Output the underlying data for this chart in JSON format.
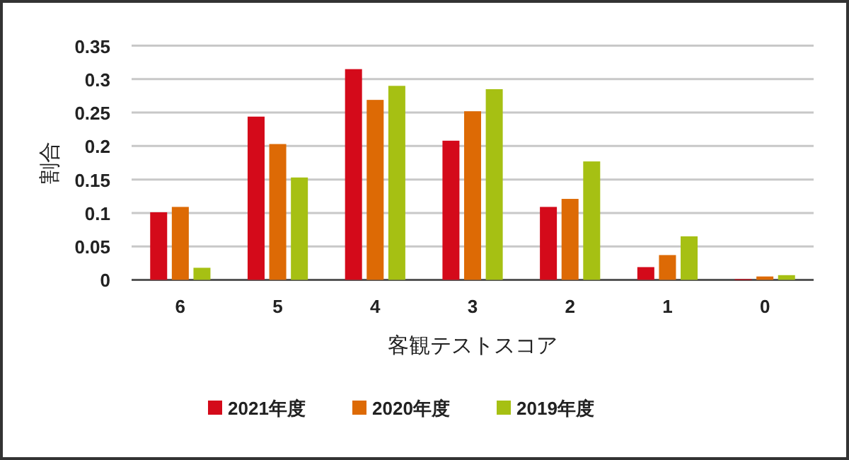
{
  "chart_data": {
    "type": "bar",
    "xlabel": "客観テストスコア",
    "ylabel": "割合",
    "categories": [
      "6",
      "5",
      "4",
      "3",
      "2",
      "1",
      "0"
    ],
    "series": [
      {
        "name": "2021年度",
        "color": "#d40a1a",
        "values": [
          0.101,
          0.244,
          0.315,
          0.208,
          0.109,
          0.019,
          0.001
        ]
      },
      {
        "name": "2020年度",
        "color": "#dd6a05",
        "values": [
          0.109,
          0.203,
          0.269,
          0.252,
          0.121,
          0.037,
          0.005
        ]
      },
      {
        "name": "2019年度",
        "color": "#a6c013",
        "values": [
          0.018,
          0.153,
          0.29,
          0.285,
          0.177,
          0.065,
          0.007
        ]
      }
    ],
    "ylim": [
      0,
      0.35
    ],
    "yticks": [
      0,
      0.05,
      0.1,
      0.15,
      0.2,
      0.25,
      0.3,
      0.35
    ],
    "grid": "y",
    "legend": "bottom"
  }
}
